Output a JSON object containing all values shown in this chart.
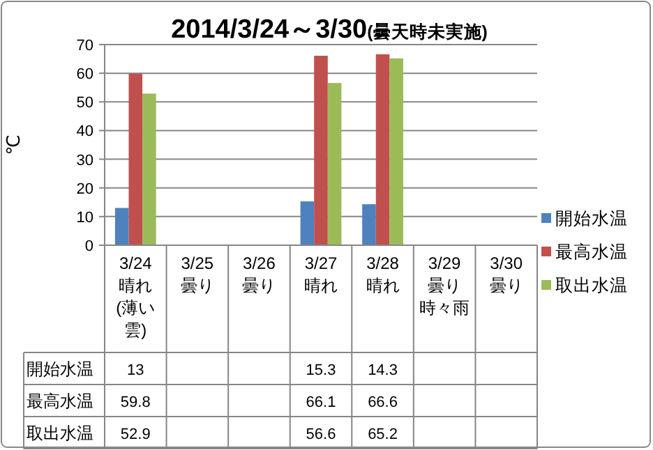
{
  "chart_data": {
    "type": "bar",
    "title": "2014/3/24～3/30",
    "subtitle": "(曇天時未実施)",
    "ylabel": "℃",
    "categories": [
      "3/24\n晴れ(薄い雲)",
      "3/25\n曇り",
      "3/26\n曇り",
      "3/27\n晴れ",
      "3/28\n晴れ",
      "3/29\n曇り時々雨",
      "3/30\n曇り"
    ],
    "series": [
      {
        "name": "開始水温",
        "color": "#4f81bd",
        "values": [
          13,
          null,
          null,
          15.3,
          14.3,
          null,
          null
        ]
      },
      {
        "name": "最高水温",
        "color": "#c0504d",
        "values": [
          59.8,
          null,
          null,
          66.1,
          66.6,
          null,
          null
        ]
      },
      {
        "name": "取出水温",
        "color": "#9bbb59",
        "values": [
          52.9,
          null,
          null,
          56.6,
          65.2,
          null,
          null
        ]
      }
    ],
    "ylim": [
      0,
      70
    ],
    "yticks": [
      0,
      10,
      20,
      30,
      40,
      50,
      60,
      70
    ],
    "grid": "y",
    "legend": "right",
    "data_labels": true
  }
}
